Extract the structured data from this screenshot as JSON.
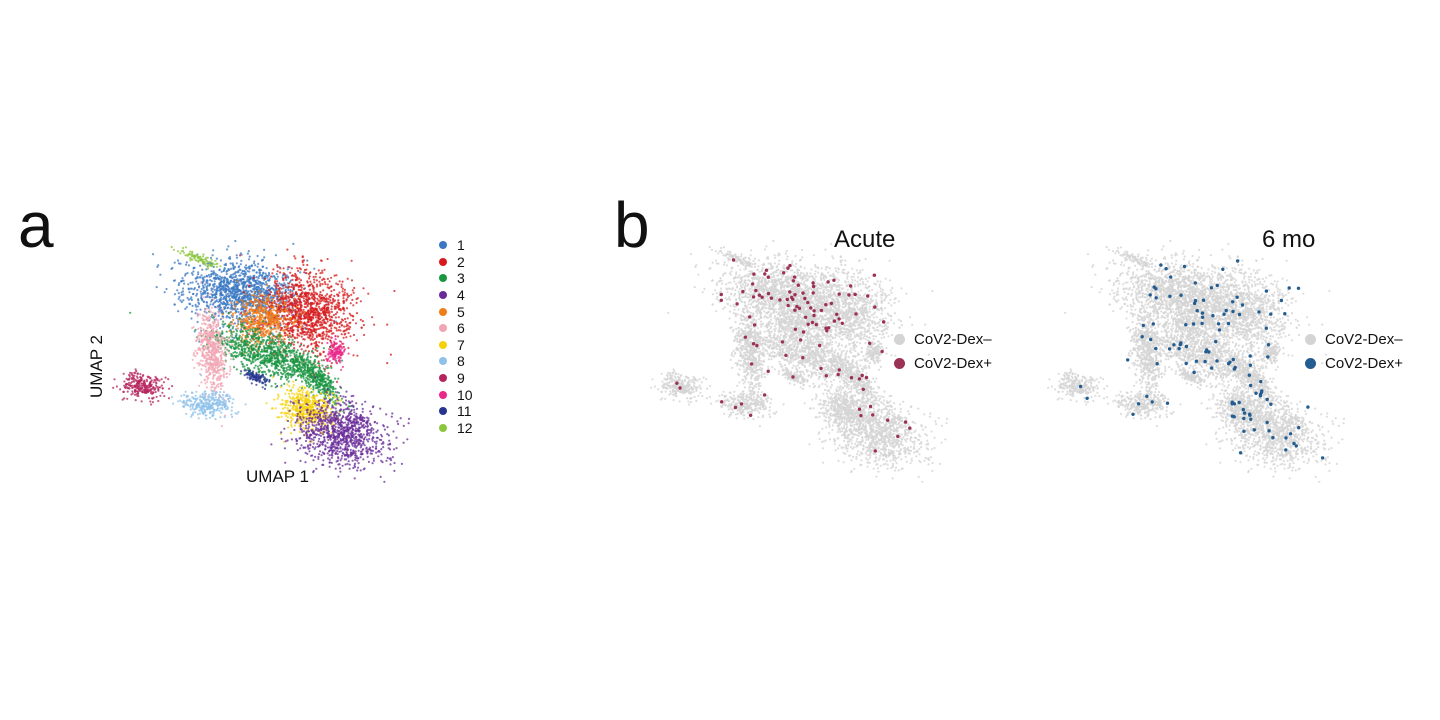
{
  "panels": {
    "a_letter": "a",
    "b_letter": "b"
  },
  "chart_data": [
    {
      "type": "scatter",
      "panel": "a",
      "title": "",
      "xlabel": "UMAP 1",
      "ylabel": "UMAP 2",
      "grid": false,
      "legend_placement": "right",
      "series": [
        {
          "name": "1",
          "color": "#3a78c3"
        },
        {
          "name": "2",
          "color": "#d7191c"
        },
        {
          "name": "3",
          "color": "#1a9641"
        },
        {
          "name": "4",
          "color": "#6a2c9a"
        },
        {
          "name": "5",
          "color": "#f07d1a"
        },
        {
          "name": "6",
          "color": "#f2a6b3"
        },
        {
          "name": "7",
          "color": "#f5d10a"
        },
        {
          "name": "8",
          "color": "#8fc2ea"
        },
        {
          "name": "9",
          "color": "#b5245e"
        },
        {
          "name": "10",
          "color": "#e8288a"
        },
        {
          "name": "11",
          "color": "#27358f"
        },
        {
          "name": "12",
          "color": "#8cc63f"
        }
      ]
    },
    {
      "type": "scatter",
      "panel": "b",
      "title": "Acute",
      "xlabel": "",
      "ylabel": "",
      "grid": false,
      "legend_placement": "right",
      "series": [
        {
          "name": "CoV2-Dex–",
          "color": "#d4d4d4"
        },
        {
          "name": "CoV2-Dex+",
          "color": "#9c3156"
        }
      ]
    },
    {
      "type": "scatter",
      "panel": "b",
      "title": "6 mo",
      "xlabel": "",
      "ylabel": "",
      "grid": false,
      "legend_placement": "right",
      "series": [
        {
          "name": "CoV2-Dex–",
          "color": "#d4d4d4"
        },
        {
          "name": "CoV2-Dex+",
          "color": "#245d8f"
        }
      ]
    }
  ]
}
